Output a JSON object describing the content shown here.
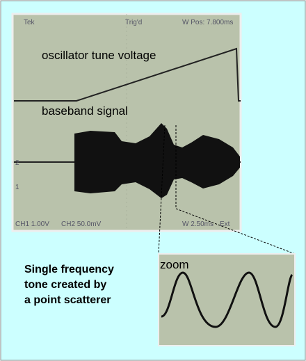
{
  "scope": {
    "header": [
      "Tek",
      "Trig'd",
      "W Pos: 7.800ms"
    ],
    "labels": [
      "oscillator tune voltage",
      "baseband signal"
    ],
    "markers": [
      "2",
      "1"
    ],
    "footer": [
      "CH1 1.00V",
      "CH2 50.0mV",
      "W 2.50ms",
      "Ext"
    ]
  },
  "zoom": {
    "label": "zoom"
  },
  "caption": [
    "Single frequency",
    "tone created by",
    "a point scatterer"
  ]
}
